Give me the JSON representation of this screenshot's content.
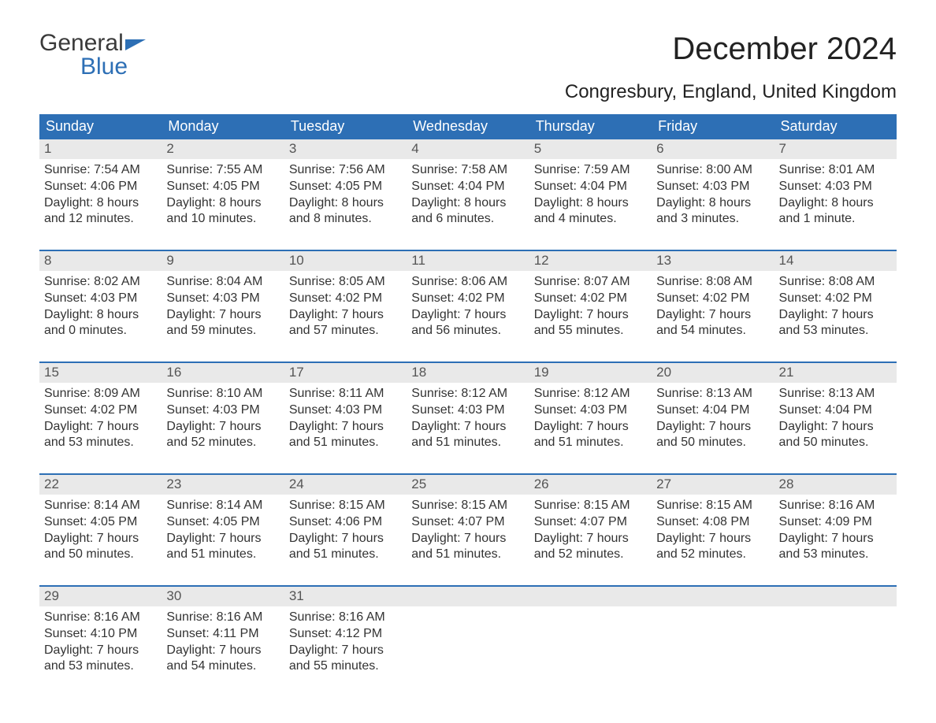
{
  "logo": {
    "line1": "General",
    "line2": "Blue"
  },
  "title": "December 2024",
  "location": "Congresbury, England, United Kingdom",
  "colors": {
    "header_bg": "#2d6fb5",
    "header_text": "#ffffff",
    "daynum_bg": "#e9e9e9",
    "week_border": "#2d6fb5",
    "body_text": "#333333",
    "logo_gray": "#3a3a3a",
    "logo_blue": "#2d6fb5",
    "page_bg": "#ffffff"
  },
  "day_headers": [
    "Sunday",
    "Monday",
    "Tuesday",
    "Wednesday",
    "Thursday",
    "Friday",
    "Saturday"
  ],
  "weeks": [
    [
      {
        "n": "1",
        "sunrise": "Sunrise: 7:54 AM",
        "sunset": "Sunset: 4:06 PM",
        "d1": "Daylight: 8 hours",
        "d2": "and 12 minutes."
      },
      {
        "n": "2",
        "sunrise": "Sunrise: 7:55 AM",
        "sunset": "Sunset: 4:05 PM",
        "d1": "Daylight: 8 hours",
        "d2": "and 10 minutes."
      },
      {
        "n": "3",
        "sunrise": "Sunrise: 7:56 AM",
        "sunset": "Sunset: 4:05 PM",
        "d1": "Daylight: 8 hours",
        "d2": "and 8 minutes."
      },
      {
        "n": "4",
        "sunrise": "Sunrise: 7:58 AM",
        "sunset": "Sunset: 4:04 PM",
        "d1": "Daylight: 8 hours",
        "d2": "and 6 minutes."
      },
      {
        "n": "5",
        "sunrise": "Sunrise: 7:59 AM",
        "sunset": "Sunset: 4:04 PM",
        "d1": "Daylight: 8 hours",
        "d2": "and 4 minutes."
      },
      {
        "n": "6",
        "sunrise": "Sunrise: 8:00 AM",
        "sunset": "Sunset: 4:03 PM",
        "d1": "Daylight: 8 hours",
        "d2": "and 3 minutes."
      },
      {
        "n": "7",
        "sunrise": "Sunrise: 8:01 AM",
        "sunset": "Sunset: 4:03 PM",
        "d1": "Daylight: 8 hours",
        "d2": "and 1 minute."
      }
    ],
    [
      {
        "n": "8",
        "sunrise": "Sunrise: 8:02 AM",
        "sunset": "Sunset: 4:03 PM",
        "d1": "Daylight: 8 hours",
        "d2": "and 0 minutes."
      },
      {
        "n": "9",
        "sunrise": "Sunrise: 8:04 AM",
        "sunset": "Sunset: 4:03 PM",
        "d1": "Daylight: 7 hours",
        "d2": "and 59 minutes."
      },
      {
        "n": "10",
        "sunrise": "Sunrise: 8:05 AM",
        "sunset": "Sunset: 4:02 PM",
        "d1": "Daylight: 7 hours",
        "d2": "and 57 minutes."
      },
      {
        "n": "11",
        "sunrise": "Sunrise: 8:06 AM",
        "sunset": "Sunset: 4:02 PM",
        "d1": "Daylight: 7 hours",
        "d2": "and 56 minutes."
      },
      {
        "n": "12",
        "sunrise": "Sunrise: 8:07 AM",
        "sunset": "Sunset: 4:02 PM",
        "d1": "Daylight: 7 hours",
        "d2": "and 55 minutes."
      },
      {
        "n": "13",
        "sunrise": "Sunrise: 8:08 AM",
        "sunset": "Sunset: 4:02 PM",
        "d1": "Daylight: 7 hours",
        "d2": "and 54 minutes."
      },
      {
        "n": "14",
        "sunrise": "Sunrise: 8:08 AM",
        "sunset": "Sunset: 4:02 PM",
        "d1": "Daylight: 7 hours",
        "d2": "and 53 minutes."
      }
    ],
    [
      {
        "n": "15",
        "sunrise": "Sunrise: 8:09 AM",
        "sunset": "Sunset: 4:02 PM",
        "d1": "Daylight: 7 hours",
        "d2": "and 53 minutes."
      },
      {
        "n": "16",
        "sunrise": "Sunrise: 8:10 AM",
        "sunset": "Sunset: 4:03 PM",
        "d1": "Daylight: 7 hours",
        "d2": "and 52 minutes."
      },
      {
        "n": "17",
        "sunrise": "Sunrise: 8:11 AM",
        "sunset": "Sunset: 4:03 PM",
        "d1": "Daylight: 7 hours",
        "d2": "and 51 minutes."
      },
      {
        "n": "18",
        "sunrise": "Sunrise: 8:12 AM",
        "sunset": "Sunset: 4:03 PM",
        "d1": "Daylight: 7 hours",
        "d2": "and 51 minutes."
      },
      {
        "n": "19",
        "sunrise": "Sunrise: 8:12 AM",
        "sunset": "Sunset: 4:03 PM",
        "d1": "Daylight: 7 hours",
        "d2": "and 51 minutes."
      },
      {
        "n": "20",
        "sunrise": "Sunrise: 8:13 AM",
        "sunset": "Sunset: 4:04 PM",
        "d1": "Daylight: 7 hours",
        "d2": "and 50 minutes."
      },
      {
        "n": "21",
        "sunrise": "Sunrise: 8:13 AM",
        "sunset": "Sunset: 4:04 PM",
        "d1": "Daylight: 7 hours",
        "d2": "and 50 minutes."
      }
    ],
    [
      {
        "n": "22",
        "sunrise": "Sunrise: 8:14 AM",
        "sunset": "Sunset: 4:05 PM",
        "d1": "Daylight: 7 hours",
        "d2": "and 50 minutes."
      },
      {
        "n": "23",
        "sunrise": "Sunrise: 8:14 AM",
        "sunset": "Sunset: 4:05 PM",
        "d1": "Daylight: 7 hours",
        "d2": "and 51 minutes."
      },
      {
        "n": "24",
        "sunrise": "Sunrise: 8:15 AM",
        "sunset": "Sunset: 4:06 PM",
        "d1": "Daylight: 7 hours",
        "d2": "and 51 minutes."
      },
      {
        "n": "25",
        "sunrise": "Sunrise: 8:15 AM",
        "sunset": "Sunset: 4:07 PM",
        "d1": "Daylight: 7 hours",
        "d2": "and 51 minutes."
      },
      {
        "n": "26",
        "sunrise": "Sunrise: 8:15 AM",
        "sunset": "Sunset: 4:07 PM",
        "d1": "Daylight: 7 hours",
        "d2": "and 52 minutes."
      },
      {
        "n": "27",
        "sunrise": "Sunrise: 8:15 AM",
        "sunset": "Sunset: 4:08 PM",
        "d1": "Daylight: 7 hours",
        "d2": "and 52 minutes."
      },
      {
        "n": "28",
        "sunrise": "Sunrise: 8:16 AM",
        "sunset": "Sunset: 4:09 PM",
        "d1": "Daylight: 7 hours",
        "d2": "and 53 minutes."
      }
    ],
    [
      {
        "n": "29",
        "sunrise": "Sunrise: 8:16 AM",
        "sunset": "Sunset: 4:10 PM",
        "d1": "Daylight: 7 hours",
        "d2": "and 53 minutes."
      },
      {
        "n": "30",
        "sunrise": "Sunrise: 8:16 AM",
        "sunset": "Sunset: 4:11 PM",
        "d1": "Daylight: 7 hours",
        "d2": "and 54 minutes."
      },
      {
        "n": "31",
        "sunrise": "Sunrise: 8:16 AM",
        "sunset": "Sunset: 4:12 PM",
        "d1": "Daylight: 7 hours",
        "d2": "and 55 minutes."
      },
      null,
      null,
      null,
      null
    ]
  ]
}
